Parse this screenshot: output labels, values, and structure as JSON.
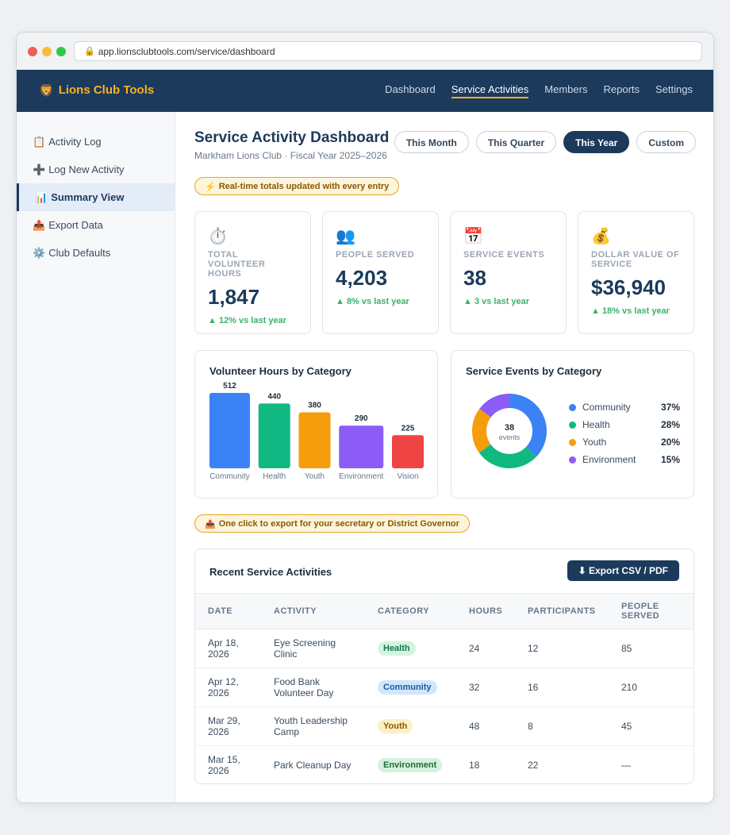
{
  "browser": {
    "url": "app.lionsclubtools.com/service/dashboard"
  },
  "topnav": {
    "brand_icon": "🦁",
    "brand": "Lions Club Tools",
    "links": [
      "Dashboard",
      "Service Activities",
      "Members",
      "Reports",
      "Settings"
    ],
    "active": "Service Activities"
  },
  "sidebar": {
    "items": [
      {
        "icon": "📋",
        "label": "Activity Log"
      },
      {
        "icon": "➕",
        "label": "Log New Activity"
      },
      {
        "icon": "📊",
        "label": "Summary View"
      },
      {
        "icon": "📤",
        "label": "Export Data"
      },
      {
        "icon": "⚙️",
        "label": "Club Defaults"
      }
    ],
    "active": "Summary View"
  },
  "header": {
    "title": "Service Activity Dashboard",
    "subtitle": "Markham Lions Club · Fiscal Year 2025–2026",
    "ranges": [
      "This Month",
      "This Quarter",
      "This Year",
      "Custom"
    ],
    "active_range": "This Year"
  },
  "notes": {
    "realtime": {
      "icon": "⚡",
      "text": "Real-time totals updated with every entry"
    },
    "export": {
      "icon": "📤",
      "text": "One click to export for your secretary or District Governor"
    }
  },
  "stats": [
    {
      "icon": "⏱️",
      "label": "Total Volunteer Hours",
      "value": "1,847",
      "delta": "▲ 12% vs last year"
    },
    {
      "icon": "👥",
      "label": "People Served",
      "value": "4,203",
      "delta": "▲ 8% vs last year"
    },
    {
      "icon": "📅",
      "label": "Service Events",
      "value": "38",
      "delta": "▲ 3 vs last year"
    },
    {
      "icon": "💰",
      "label": "Dollar Value of Service",
      "value": "$36,940",
      "delta": "▲ 18% vs last year"
    }
  ],
  "colors": {
    "Community": "#3b82f6",
    "Health": "#10b981",
    "Youth": "#f59e0b",
    "Environment": "#8b5cf6",
    "Vision": "#ef4444"
  },
  "chart_data": [
    {
      "type": "bar",
      "title": "Volunteer Hours by Category",
      "categories": [
        "Community",
        "Health",
        "Youth",
        "Environment",
        "Vision"
      ],
      "values": [
        512,
        440,
        380,
        290,
        225
      ],
      "ylim": [
        0,
        512
      ],
      "grid": false
    },
    {
      "type": "pie",
      "title": "Service Events by Category",
      "labels": [
        "Community",
        "Health",
        "Youth",
        "Environment"
      ],
      "values": [
        37,
        28,
        20,
        15
      ],
      "value_labels": [
        "37%",
        "28%",
        "20%",
        "15%"
      ],
      "center_value": "38",
      "center_label": "events",
      "legend": "right"
    }
  ],
  "table": {
    "title": "Recent Service Activities",
    "export_label": "⬇ Export CSV / PDF",
    "columns": [
      "DATE",
      "ACTIVITY",
      "CATEGORY",
      "HOURS",
      "PARTICIPANTS",
      "PEOPLE SERVED"
    ],
    "rows": [
      {
        "date": "Apr 18, 2026",
        "activity": "Eye Screening Clinic",
        "category": "Health",
        "hours": "24",
        "participants": "12",
        "served": "85"
      },
      {
        "date": "Apr 12, 2026",
        "activity": "Food Bank Volunteer Day",
        "category": "Community",
        "hours": "32",
        "participants": "16",
        "served": "210"
      },
      {
        "date": "Mar 29, 2026",
        "activity": "Youth Leadership Camp",
        "category": "Youth",
        "hours": "48",
        "participants": "8",
        "served": "45"
      },
      {
        "date": "Mar 15, 2026",
        "activity": "Park Cleanup Day",
        "category": "Environment",
        "hours": "18",
        "participants": "22",
        "served": "—"
      }
    ],
    "badge_styles": {
      "Health": {
        "bg": "#d3f4e1",
        "fg": "#17794a"
      },
      "Community": {
        "bg": "#d2e6fb",
        "fg": "#1b5aa6"
      },
      "Youth": {
        "bg": "#fdefc6",
        "fg": "#8a5a00"
      },
      "Environment": {
        "bg": "#d6f1dd",
        "fg": "#1e6b36"
      }
    }
  }
}
